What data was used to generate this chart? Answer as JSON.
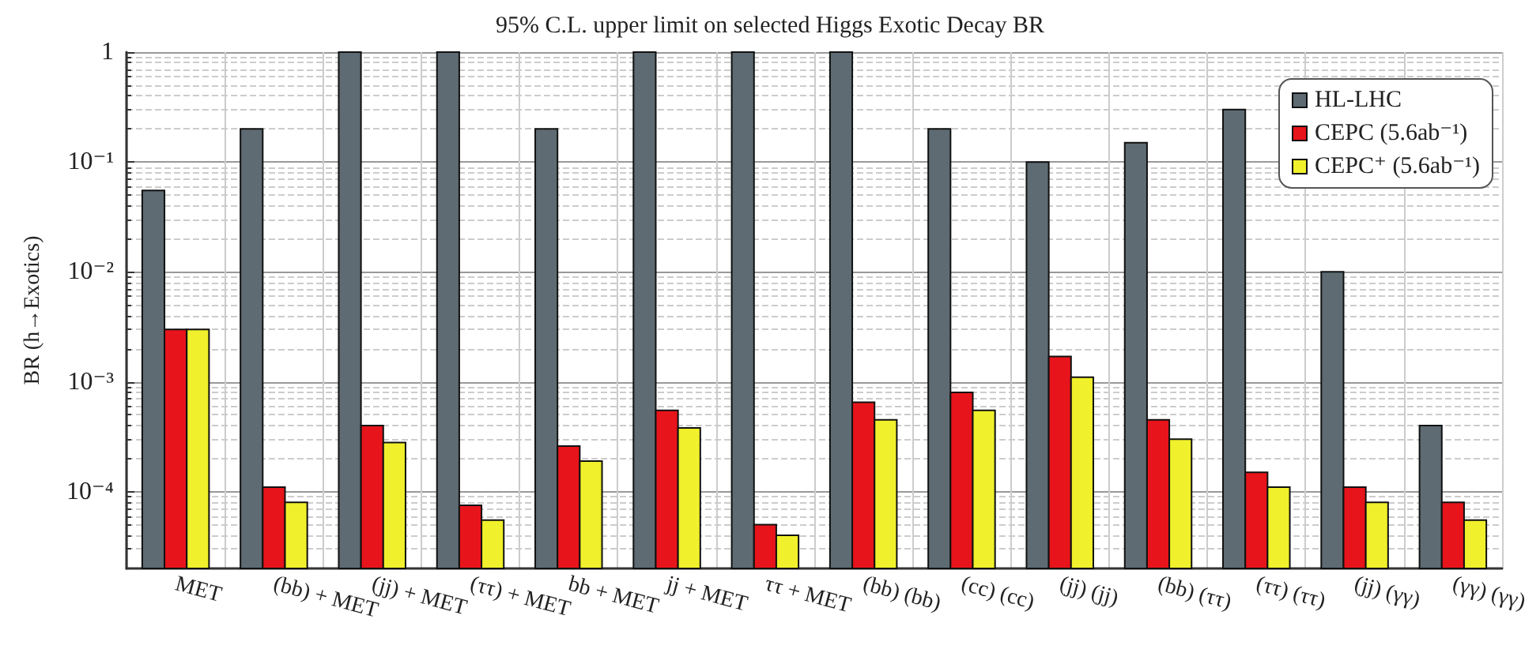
{
  "chart_data": {
    "type": "bar",
    "title": "95% C.L. upper limit on selected Higgs Exotic Decay BR",
    "ylabel": "BR (h→Exotics)",
    "categories": [
      "MET",
      "(bb) + MET",
      "(jj) + MET",
      "(ττ) + MET",
      "bb + MET",
      "jj + MET",
      "ττ + MET",
      "(bb) (bb)",
      "(cc) (cc)",
      "(jj) (jj)",
      "(bb) (ττ)",
      "(ττ) (ττ)",
      "(jj) (γγ)",
      "(γγ) (γγ)"
    ],
    "series": [
      {
        "name": "HL-LHC",
        "color": "#5e6b73",
        "values": [
          0.055,
          0.2,
          1,
          1,
          0.2,
          1,
          1,
          1,
          0.2,
          0.1,
          0.15,
          0.3,
          0.01,
          0.0004
        ]
      },
      {
        "name": "CEPC (5.6ab⁻¹)",
        "color": "#e8141b",
        "values": [
          0.003,
          0.00011,
          0.0004,
          7.5e-05,
          0.00026,
          0.00055,
          5e-05,
          0.00065,
          0.0008,
          0.0017,
          0.00045,
          0.00015,
          0.00011,
          8e-05
        ]
      },
      {
        "name": "CEPC⁺ (5.6ab⁻¹)",
        "color": "#f0f02c",
        "values": [
          0.003,
          8e-05,
          0.00028,
          5.5e-05,
          0.00019,
          0.00038,
          4e-05,
          0.00045,
          0.00055,
          0.0011,
          0.0003,
          0.00011,
          8e-05,
          5.5e-05
        ]
      }
    ],
    "log": true,
    "ylim": [
      2e-05,
      1
    ],
    "yticks": [
      {
        "value": 0.0001,
        "label": "10⁻⁴"
      },
      {
        "value": 0.001,
        "label": "10⁻³"
      },
      {
        "value": 0.01,
        "label": "10⁻²"
      },
      {
        "value": 0.1,
        "label": "10⁻¹"
      },
      1
    ],
    "grid": true,
    "legend": "top right"
  }
}
